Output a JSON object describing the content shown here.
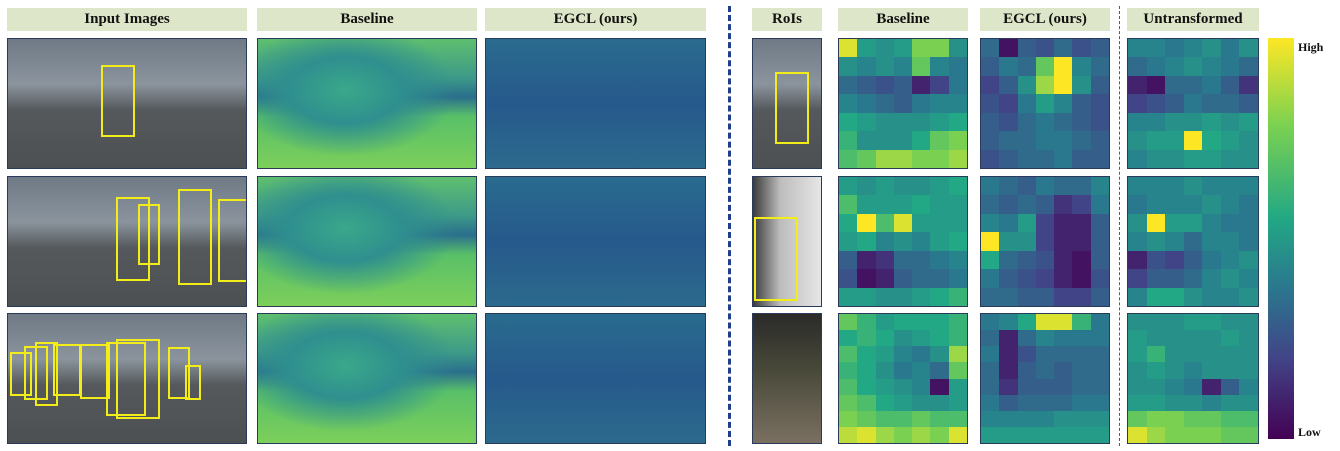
{
  "left_headers": [
    "Input Images",
    "Baseline",
    "EGCL (ours)"
  ],
  "right_headers": [
    "RoIs",
    "Baseline",
    "EGCL (ours)",
    "Untransformed"
  ],
  "colorbar": {
    "high": "High",
    "low": "Low",
    "colormap": "viridis"
  },
  "colors": {
    "header_bg": "#dde6c8",
    "box": "#f2ec18",
    "separator": "#1f3f8a"
  },
  "heatmaps": {
    "row1": {
      "baseline": [
        0.95,
        0.55,
        0.5,
        0.55,
        0.8,
        0.8,
        0.5,
        0.5,
        0.45,
        0.5,
        0.45,
        0.75,
        0.45,
        0.4,
        0.35,
        0.3,
        0.25,
        0.3,
        0.1,
        0.2,
        0.4,
        0.45,
        0.4,
        0.35,
        0.3,
        0.4,
        0.45,
        0.45,
        0.6,
        0.55,
        0.5,
        0.5,
        0.5,
        0.55,
        0.6,
        0.65,
        0.5,
        0.5,
        0.5,
        0.6,
        0.75,
        0.8,
        0.7,
        0.75,
        0.85,
        0.85,
        0.8,
        0.8,
        0.85
      ],
      "egcl": [
        0.35,
        0.05,
        0.3,
        0.25,
        0.35,
        0.25,
        0.3,
        0.3,
        0.4,
        0.35,
        0.75,
        1.0,
        0.45,
        0.35,
        0.2,
        0.3,
        0.5,
        0.85,
        1.0,
        0.5,
        0.3,
        0.25,
        0.2,
        0.4,
        0.55,
        0.45,
        0.3,
        0.25,
        0.3,
        0.25,
        0.35,
        0.4,
        0.35,
        0.3,
        0.25,
        0.3,
        0.35,
        0.35,
        0.4,
        0.4,
        0.35,
        0.3,
        0.25,
        0.3,
        0.35,
        0.35,
        0.4,
        0.3,
        0.3
      ],
      "untransformed": [
        0.45,
        0.45,
        0.4,
        0.45,
        0.5,
        0.4,
        0.5,
        0.35,
        0.4,
        0.45,
        0.5,
        0.45,
        0.4,
        0.35,
        0.1,
        0.05,
        0.35,
        0.35,
        0.4,
        0.3,
        0.15,
        0.2,
        0.25,
        0.3,
        0.4,
        0.35,
        0.35,
        0.3,
        0.45,
        0.45,
        0.5,
        0.5,
        0.55,
        0.5,
        0.55,
        0.5,
        0.55,
        0.55,
        1.0,
        0.6,
        0.55,
        0.5,
        0.45,
        0.5,
        0.5,
        0.55,
        0.55,
        0.5,
        0.5
      ]
    },
    "row2": {
      "baseline": [
        0.55,
        0.5,
        0.55,
        0.5,
        0.5,
        0.55,
        0.6,
        0.7,
        0.55,
        0.55,
        0.55,
        0.6,
        0.55,
        0.55,
        0.6,
        1.0,
        0.7,
        0.95,
        0.55,
        0.55,
        0.55,
        0.55,
        0.6,
        0.45,
        0.5,
        0.45,
        0.55,
        0.6,
        0.3,
        0.1,
        0.15,
        0.35,
        0.35,
        0.4,
        0.45,
        0.25,
        0.05,
        0.1,
        0.3,
        0.35,
        0.35,
        0.4,
        0.55,
        0.55,
        0.5,
        0.5,
        0.55,
        0.6,
        0.65
      ],
      "egcl": [
        0.4,
        0.35,
        0.3,
        0.4,
        0.35,
        0.35,
        0.45,
        0.35,
        0.3,
        0.35,
        0.3,
        0.15,
        0.2,
        0.4,
        0.45,
        0.4,
        0.55,
        0.2,
        0.1,
        0.1,
        0.3,
        1.0,
        0.5,
        0.5,
        0.2,
        0.1,
        0.1,
        0.3,
        0.6,
        0.35,
        0.3,
        0.25,
        0.1,
        0.05,
        0.3,
        0.4,
        0.3,
        0.25,
        0.2,
        0.1,
        0.05,
        0.25,
        0.35,
        0.35,
        0.3,
        0.3,
        0.2,
        0.2,
        0.3
      ],
      "untransformed": [
        0.45,
        0.45,
        0.45,
        0.5,
        0.45,
        0.45,
        0.45,
        0.4,
        0.45,
        0.45,
        0.45,
        0.5,
        0.45,
        0.4,
        0.5,
        1.0,
        0.55,
        0.55,
        0.45,
        0.4,
        0.4,
        0.45,
        0.5,
        0.45,
        0.35,
        0.45,
        0.45,
        0.4,
        0.1,
        0.25,
        0.2,
        0.3,
        0.4,
        0.45,
        0.5,
        0.2,
        0.3,
        0.3,
        0.35,
        0.45,
        0.5,
        0.45,
        0.45,
        0.6,
        0.6,
        0.5,
        0.45,
        0.45,
        0.5
      ]
    },
    "row3": {
      "baseline": [
        0.75,
        0.65,
        0.55,
        0.6,
        0.6,
        0.6,
        0.65,
        0.6,
        0.65,
        0.6,
        0.5,
        0.55,
        0.6,
        0.65,
        0.7,
        0.6,
        0.55,
        0.45,
        0.4,
        0.5,
        0.85,
        0.65,
        0.6,
        0.5,
        0.4,
        0.45,
        0.35,
        0.75,
        0.7,
        0.6,
        0.55,
        0.5,
        0.45,
        0.05,
        0.55,
        0.75,
        0.7,
        0.6,
        0.55,
        0.5,
        0.5,
        0.55,
        0.8,
        0.75,
        0.7,
        0.7,
        0.75,
        0.7,
        0.7,
        0.9,
        0.95,
        0.85,
        0.8,
        0.85,
        0.8,
        0.95
      ],
      "egcl": [
        0.4,
        0.45,
        0.6,
        0.95,
        0.95,
        0.65,
        0.4,
        0.35,
        0.1,
        0.35,
        0.45,
        0.4,
        0.4,
        0.4,
        0.4,
        0.1,
        0.25,
        0.35,
        0.35,
        0.35,
        0.35,
        0.35,
        0.1,
        0.3,
        0.35,
        0.3,
        0.35,
        0.35,
        0.35,
        0.15,
        0.3,
        0.3,
        0.3,
        0.35,
        0.35,
        0.4,
        0.3,
        0.35,
        0.35,
        0.35,
        0.4,
        0.4,
        0.45,
        0.45,
        0.45,
        0.45,
        0.5,
        0.5,
        0.5,
        0.55,
        0.55,
        0.55,
        0.55,
        0.55,
        0.55,
        0.55
      ],
      "untransformed": [
        0.5,
        0.5,
        0.5,
        0.55,
        0.55,
        0.5,
        0.5,
        0.55,
        0.5,
        0.5,
        0.5,
        0.5,
        0.55,
        0.5,
        0.55,
        0.65,
        0.5,
        0.5,
        0.5,
        0.5,
        0.5,
        0.5,
        0.55,
        0.5,
        0.45,
        0.5,
        0.5,
        0.5,
        0.5,
        0.5,
        0.45,
        0.4,
        0.1,
        0.3,
        0.45,
        0.55,
        0.55,
        0.5,
        0.5,
        0.45,
        0.5,
        0.5,
        0.75,
        0.8,
        0.8,
        0.75,
        0.75,
        0.7,
        0.7,
        0.95,
        0.85,
        0.8,
        0.8,
        0.8,
        0.75,
        0.75
      ]
    }
  }
}
